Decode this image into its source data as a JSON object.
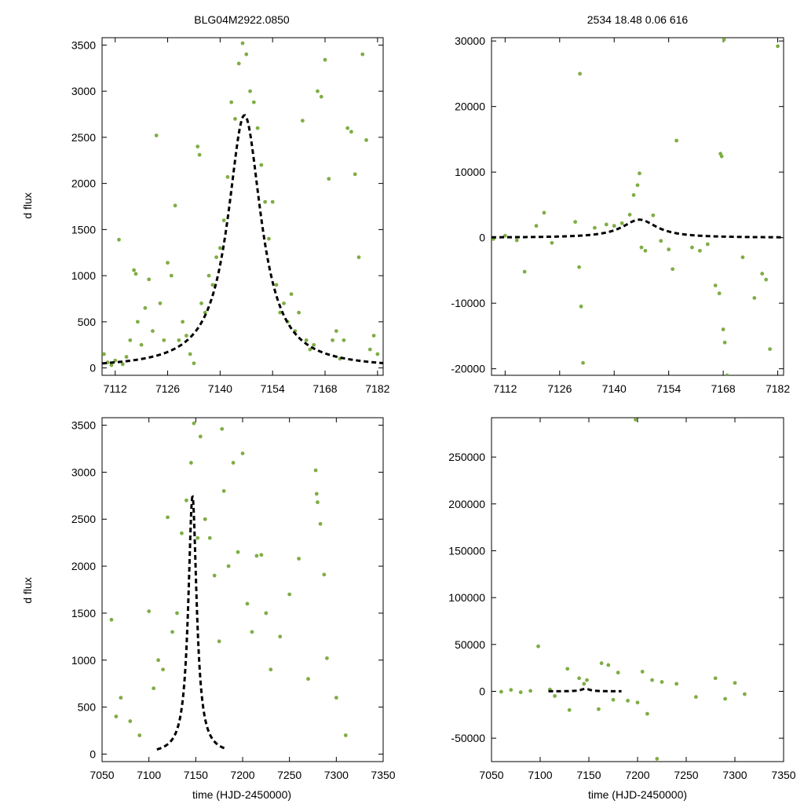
{
  "colors": {
    "points": "#7fad45",
    "model": "#000000",
    "axis": "#000000",
    "background": "#ffffff"
  },
  "titles": {
    "left": "BLG04M2922.0850",
    "right": "2534  18.48  0.06  616"
  },
  "labels": {
    "ylabel": "d flux",
    "xlabel": "time (HJD-2450000)"
  },
  "chart_data": [
    {
      "id": "top-left",
      "type": "scatter",
      "title": "BLG04M2922.0850",
      "xlabel": "",
      "ylabel": "d flux",
      "xlim": [
        7108.5,
        7183.5
      ],
      "ylim": [
        -80,
        3580
      ],
      "xticks": [
        7112,
        7126,
        7140,
        7154,
        7168,
        7182
      ],
      "yticks": [
        0,
        500,
        1000,
        1500,
        2000,
        2500,
        3000,
        3500
      ],
      "model": {
        "style": "dashed",
        "t0": 7146.5,
        "peak": 2740,
        "base": -5,
        "tau": 5.4,
        "x_range": [
          7108.5,
          7183.5
        ]
      },
      "points": [
        [
          7109,
          150
        ],
        [
          7110,
          60
        ],
        [
          7111,
          30
        ],
        [
          7112,
          80
        ],
        [
          7113,
          1390
        ],
        [
          7114,
          40
        ],
        [
          7115,
          120
        ],
        [
          7116,
          300
        ],
        [
          7117,
          1060
        ],
        [
          7117.5,
          1020
        ],
        [
          7118,
          500
        ],
        [
          7119,
          250
        ],
        [
          7120,
          650
        ],
        [
          7121,
          960
        ],
        [
          7122,
          400
        ],
        [
          7123,
          2520
        ],
        [
          7124,
          700
        ],
        [
          7125,
          300
        ],
        [
          7126,
          1140
        ],
        [
          7127,
          1000
        ],
        [
          7128,
          1760
        ],
        [
          7129,
          300
        ],
        [
          7130,
          500
        ],
        [
          7131,
          350
        ],
        [
          7132,
          150
        ],
        [
          7133,
          50
        ],
        [
          7134,
          2400
        ],
        [
          7134.5,
          2310
        ],
        [
          7135,
          700
        ],
        [
          7136,
          600
        ],
        [
          7137,
          1000
        ],
        [
          7138,
          900
        ],
        [
          7139,
          1200
        ],
        [
          7140,
          1300
        ],
        [
          7141,
          1600
        ],
        [
          7142,
          2070
        ],
        [
          7143,
          2880
        ],
        [
          7144,
          2700
        ],
        [
          7145,
          3300
        ],
        [
          7146,
          3520
        ],
        [
          7147,
          3400
        ],
        [
          7148,
          3000
        ],
        [
          7149,
          2880
        ],
        [
          7150,
          2600
        ],
        [
          7151,
          2200
        ],
        [
          7152,
          1800
        ],
        [
          7153,
          1400
        ],
        [
          7154,
          1800
        ],
        [
          7155,
          900
        ],
        [
          7156,
          600
        ],
        [
          7157,
          700
        ],
        [
          7158,
          500
        ],
        [
          7159,
          800
        ],
        [
          7160,
          400
        ],
        [
          7161,
          600
        ],
        [
          7162,
          2680
        ],
        [
          7163,
          300
        ],
        [
          7164,
          200
        ],
        [
          7165,
          250
        ],
        [
          7166,
          3000
        ],
        [
          7167,
          2940
        ],
        [
          7168,
          3340
        ],
        [
          7169,
          2050
        ],
        [
          7170,
          300
        ],
        [
          7171,
          400
        ],
        [
          7172,
          100
        ],
        [
          7173,
          300
        ],
        [
          7174,
          2600
        ],
        [
          7175,
          2560
        ],
        [
          7176,
          2100
        ],
        [
          7177,
          1200
        ],
        [
          7178,
          3400
        ],
        [
          7179,
          2470
        ],
        [
          7180,
          200
        ],
        [
          7181,
          350
        ],
        [
          7182,
          150
        ]
      ]
    },
    {
      "id": "top-right",
      "type": "scatter",
      "title": "2534  18.48  0.06  616",
      "xlabel": "",
      "ylabel": "",
      "xlim": [
        7108.5,
        7183.5
      ],
      "ylim": [
        -21000,
        30500
      ],
      "xticks": [
        7112,
        7126,
        7140,
        7154,
        7168,
        7182
      ],
      "yticks": [
        -20000,
        -10000,
        0,
        10000,
        20000,
        30000
      ],
      "model": {
        "style": "dashed",
        "t0": 7146.5,
        "peak": 2740,
        "base": -5,
        "tau": 5.4,
        "x_range": [
          7108.5,
          7183.5
        ]
      },
      "points": [
        [
          7109,
          -200
        ],
        [
          7112,
          300
        ],
        [
          7115,
          -400
        ],
        [
          7117,
          -5200
        ],
        [
          7120,
          1800
        ],
        [
          7122,
          3800
        ],
        [
          7124,
          -800
        ],
        [
          7130,
          2400
        ],
        [
          7131,
          -4500
        ],
        [
          7131.5,
          -10500
        ],
        [
          7132,
          -19100
        ],
        [
          7131.2,
          25000
        ],
        [
          7135,
          1500
        ],
        [
          7138,
          2000
        ],
        [
          7140,
          1800
        ],
        [
          7142,
          2200
        ],
        [
          7144,
          3500
        ],
        [
          7145,
          6500
        ],
        [
          7146,
          8000
        ],
        [
          7146.5,
          9800
        ],
        [
          7147,
          -1500
        ],
        [
          7148,
          -2000
        ],
        [
          7150,
          3400
        ],
        [
          7152,
          -500
        ],
        [
          7154,
          -1800
        ],
        [
          7155,
          -4800
        ],
        [
          7156,
          14800
        ],
        [
          7160,
          -1500
        ],
        [
          7162,
          -2000
        ],
        [
          7164,
          -1000
        ],
        [
          7166,
          -7300
        ],
        [
          7167,
          -8500
        ],
        [
          7167.3,
          12800
        ],
        [
          7167.6,
          12400
        ],
        [
          7168,
          -14000
        ],
        [
          7168.4,
          -16000
        ],
        [
          7169,
          -21000
        ],
        [
          7168.2,
          30200
        ],
        [
          7173,
          -3000
        ],
        [
          7176,
          -9200
        ],
        [
          7178,
          -5500
        ],
        [
          7179,
          -6400
        ],
        [
          7180,
          -17000
        ],
        [
          7182,
          29200
        ]
      ]
    },
    {
      "id": "bottom-left",
      "type": "scatter",
      "title": "",
      "xlabel": "time (HJD-2450000)",
      "ylabel": "d flux",
      "xlim": [
        7050,
        7350
      ],
      "ylim": [
        -80,
        3580
      ],
      "xticks": [
        7050,
        7100,
        7150,
        7200,
        7250,
        7300,
        7350
      ],
      "yticks": [
        0,
        500,
        1000,
        1500,
        2000,
        2500,
        3000,
        3500
      ],
      "model": {
        "style": "dashed",
        "t0": 7146.5,
        "peak": 2740,
        "base": -5,
        "tau": 5.4,
        "x_range": [
          7108.5,
          7183.5
        ]
      },
      "points": [
        [
          7060,
          1430
        ],
        [
          7065,
          400
        ],
        [
          7070,
          600
        ],
        [
          7080,
          350
        ],
        [
          7090,
          200
        ],
        [
          7100,
          1520
        ],
        [
          7105,
          700
        ],
        [
          7110,
          1000
        ],
        [
          7115,
          900
        ],
        [
          7120,
          2520
        ],
        [
          7125,
          1300
        ],
        [
          7130,
          1500
        ],
        [
          7135,
          2350
        ],
        [
          7140,
          2700
        ],
        [
          7145,
          3100
        ],
        [
          7148,
          3520
        ],
        [
          7152,
          2300
        ],
        [
          7155,
          3380
        ],
        [
          7160,
          2500
        ],
        [
          7165,
          2300
        ],
        [
          7170,
          1900
        ],
        [
          7175,
          1200
        ],
        [
          7178,
          3460
        ],
        [
          7180,
          2800
        ],
        [
          7185,
          2000
        ],
        [
          7190,
          3100
        ],
        [
          7195,
          2150
        ],
        [
          7200,
          3200
        ],
        [
          7205,
          1600
        ],
        [
          7210,
          1300
        ],
        [
          7215,
          2110
        ],
        [
          7220,
          2120
        ],
        [
          7225,
          1500
        ],
        [
          7230,
          900
        ],
        [
          7240,
          1250
        ],
        [
          7250,
          1700
        ],
        [
          7260,
          2080
        ],
        [
          7270,
          800
        ],
        [
          7278,
          3020
        ],
        [
          7279,
          2770
        ],
        [
          7280,
          2680
        ],
        [
          7283,
          2450
        ],
        [
          7287,
          1910
        ],
        [
          7290,
          1020
        ],
        [
          7300,
          600
        ],
        [
          7310,
          200
        ]
      ]
    },
    {
      "id": "bottom-right",
      "type": "scatter",
      "title": "",
      "xlabel": "time (HJD-2450000)",
      "ylabel": "",
      "xlim": [
        7050,
        7350
      ],
      "ylim": [
        -75000,
        292000
      ],
      "xticks": [
        7050,
        7100,
        7150,
        7200,
        7250,
        7300,
        7350
      ],
      "yticks": [
        -50000,
        0,
        50000,
        100000,
        150000,
        200000,
        250000
      ],
      "model": {
        "style": "dashed",
        "t0": 7146.5,
        "peak": 2740,
        "base": -5,
        "tau": 5.4,
        "x_range": [
          7108.5,
          7183.5
        ]
      },
      "points": [
        [
          7060,
          -500
        ],
        [
          7070,
          1500
        ],
        [
          7080,
          -1000
        ],
        [
          7090,
          500
        ],
        [
          7098,
          48000
        ],
        [
          7110,
          2000
        ],
        [
          7115,
          -5000
        ],
        [
          7128,
          24000
        ],
        [
          7130,
          -20000
        ],
        [
          7140,
          14000
        ],
        [
          7145,
          8000
        ],
        [
          7148,
          12000
        ],
        [
          7160,
          -19000
        ],
        [
          7163,
          30000
        ],
        [
          7170,
          28000
        ],
        [
          7175,
          -9000
        ],
        [
          7180,
          20000
        ],
        [
          7190,
          -10000
        ],
        [
          7198,
          290000
        ],
        [
          7200,
          -12000
        ],
        [
          7205,
          21000
        ],
        [
          7210,
          -24000
        ],
        [
          7215,
          12000
        ],
        [
          7220,
          -72000
        ],
        [
          7225,
          10000
        ],
        [
          7240,
          8000
        ],
        [
          7260,
          -6000
        ],
        [
          7280,
          14000
        ],
        [
          7290,
          -8000
        ],
        [
          7300,
          9000
        ],
        [
          7310,
          -3000
        ]
      ]
    }
  ]
}
